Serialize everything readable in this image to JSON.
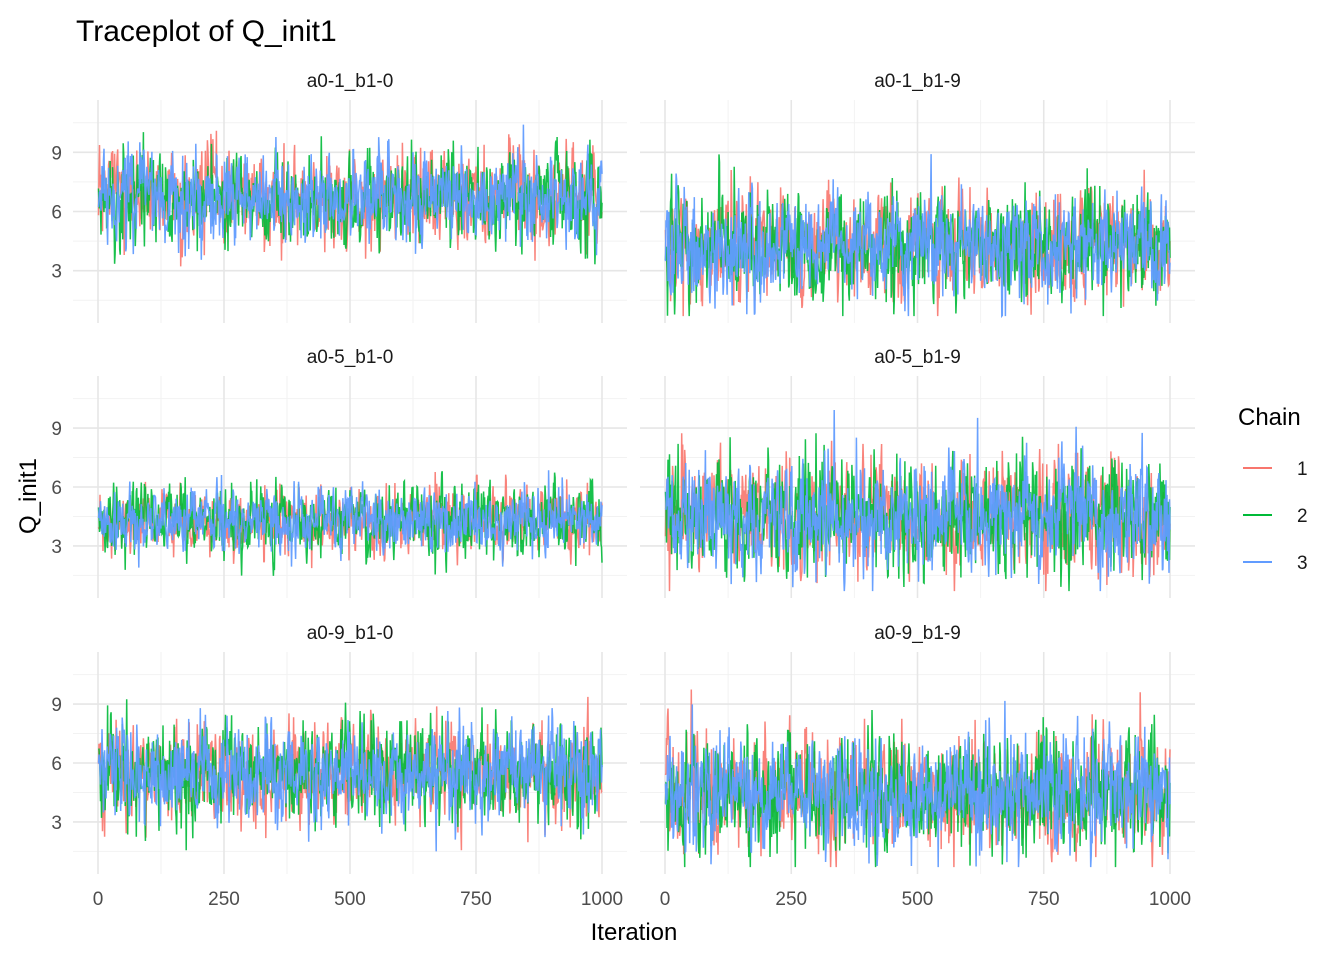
{
  "chart_data": {
    "type": "line",
    "title": "Traceplot of Q_init1",
    "xlabel": "Iteration",
    "ylabel": "Q_init1",
    "xlim": [
      0,
      1000
    ],
    "ylim": [
      0.5,
      11.5
    ],
    "x_ticks": [
      "0",
      "250",
      "500",
      "750",
      "1000"
    ],
    "x_tick_values": [
      0,
      250,
      500,
      750,
      1000
    ],
    "y_ticks": [
      "3",
      "6",
      "9"
    ],
    "y_tick_values": [
      3,
      6,
      9
    ],
    "grid": true,
    "legend": {
      "title": "Chain",
      "placement": "right",
      "entries": [
        {
          "label": "1",
          "color": "#F8766D"
        },
        {
          "label": "2",
          "color": "#00BA38"
        },
        {
          "label": "3",
          "color": "#619CFF"
        }
      ]
    },
    "iterations": 1000,
    "panels": [
      {
        "title": "a0-1_b1-0",
        "series": [
          {
            "name": "1",
            "mean": 6.7,
            "sd": 1.1
          },
          {
            "name": "2",
            "mean": 6.7,
            "sd": 1.15
          },
          {
            "name": "3",
            "mean": 6.7,
            "sd": 1.1
          }
        ]
      },
      {
        "title": "a0-1_b1-9",
        "series": [
          {
            "name": "1",
            "mean": 4.3,
            "sd": 1.3
          },
          {
            "name": "2",
            "mean": 4.3,
            "sd": 1.35
          },
          {
            "name": "3",
            "mean": 4.3,
            "sd": 1.3
          }
        ]
      },
      {
        "title": "a0-5_b1-0",
        "series": [
          {
            "name": "1",
            "mean": 4.3,
            "sd": 0.8
          },
          {
            "name": "2",
            "mean": 4.3,
            "sd": 0.85
          },
          {
            "name": "3",
            "mean": 4.3,
            "sd": 0.8
          }
        ]
      },
      {
        "title": "a0-5_b1-9",
        "series": [
          {
            "name": "1",
            "mean": 4.5,
            "sd": 1.4
          },
          {
            "name": "2",
            "mean": 4.5,
            "sd": 1.45
          },
          {
            "name": "3",
            "mean": 4.5,
            "sd": 1.4
          }
        ]
      },
      {
        "title": "a0-9_b1-0",
        "series": [
          {
            "name": "1",
            "mean": 5.5,
            "sd": 1.2
          },
          {
            "name": "2",
            "mean": 5.5,
            "sd": 1.25
          },
          {
            "name": "3",
            "mean": 5.5,
            "sd": 1.2
          }
        ]
      },
      {
        "title": "a0-9_b1-9",
        "series": [
          {
            "name": "1",
            "mean": 4.5,
            "sd": 1.4
          },
          {
            "name": "2",
            "mean": 4.5,
            "sd": 1.45
          },
          {
            "name": "3",
            "mean": 4.5,
            "sd": 1.4
          }
        ]
      }
    ]
  }
}
